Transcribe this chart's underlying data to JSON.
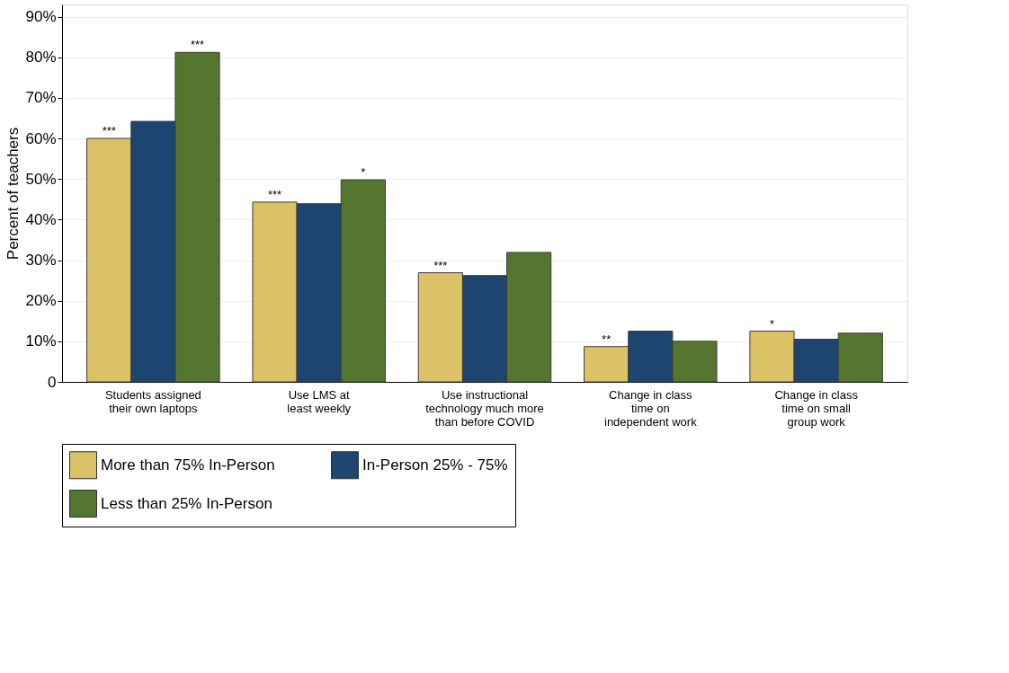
{
  "chart_data": {
    "type": "bar",
    "ylabel": "Percent of teachers",
    "categories": [
      "Students assigned\ntheir own laptops",
      "Use LMS at\nleast weekly",
      "Use instructional\ntechnology much more\nthan before COVID",
      "Change in class\ntime on\nindependent work",
      "Change in class\ntime on small\ngroup work"
    ],
    "series": [
      {
        "name": "More than 75% In-Person",
        "color": "#dcc266",
        "values": [
          60,
          44.3,
          26.9,
          8.7,
          12.5
        ],
        "value_labels": [
          "***",
          "***",
          "***",
          "**",
          "*"
        ]
      },
      {
        "name": "In-Person 25% - 75%",
        "color": "#1c4670",
        "values": [
          64.2,
          43.9,
          26.2,
          12.5,
          10.5
        ]
      },
      {
        "name": "Less than 25% In-Person",
        "color": "#55762f",
        "values": [
          81.2,
          49.8,
          31.9,
          10,
          12
        ],
        "value_labels": [
          "***",
          "*",
          null,
          null,
          null
        ]
      }
    ],
    "ylim": [
      0,
      93
    ],
    "yticks": [
      0,
      {
        "value": 10,
        "label": "10%"
      },
      {
        "value": 20,
        "label": "20%"
      },
      {
        "value": 30,
        "label": "30%"
      },
      {
        "value": 40,
        "label": "40%"
      },
      {
        "value": 50,
        "label": "50%"
      },
      {
        "value": 60,
        "label": "60%"
      },
      {
        "value": 70,
        "label": "70%"
      },
      {
        "value": 80,
        "label": "80%"
      },
      {
        "value": 90,
        "label": "90%"
      }
    ],
    "grid": "y",
    "legend": "bottom"
  }
}
